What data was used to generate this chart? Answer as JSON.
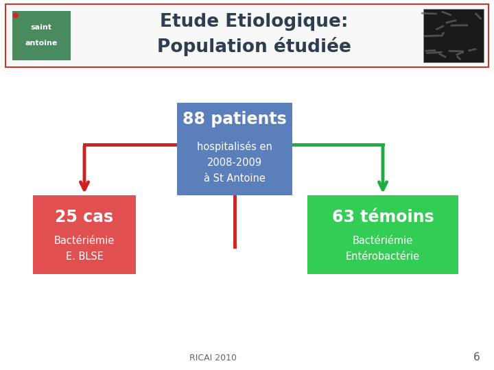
{
  "title_line1": "Etude Etiologique:",
  "title_line2": "Population étudiée",
  "bg_color": "#ffffff",
  "header_border_color": "#c0392b",
  "center_box_text1": "88 patients",
  "center_box_text2": "hospitalisés en\n2008-2009\nà St Antoine",
  "center_box_color": "#5b7fba",
  "left_box_text1": "25 cas",
  "left_box_text2": "Bactériémie\nE. BLSE",
  "left_box_color": "#e05050",
  "right_box_text1": "63 témoins",
  "right_box_text2": "Bactériémie\nEntérobactérie",
  "right_box_color": "#33cc55",
  "arrow_left_color": "#cc2222",
  "arrow_right_color": "#22aa44",
  "line_center_color": "#cc2222",
  "footer_text": "RICAI 2010",
  "page_number": "6",
  "text_color": "#ffffff",
  "title_color": "#2c3e50",
  "logo_color": "#4a8a5f",
  "logo_text1": "saint",
  "logo_text2": "antoine"
}
